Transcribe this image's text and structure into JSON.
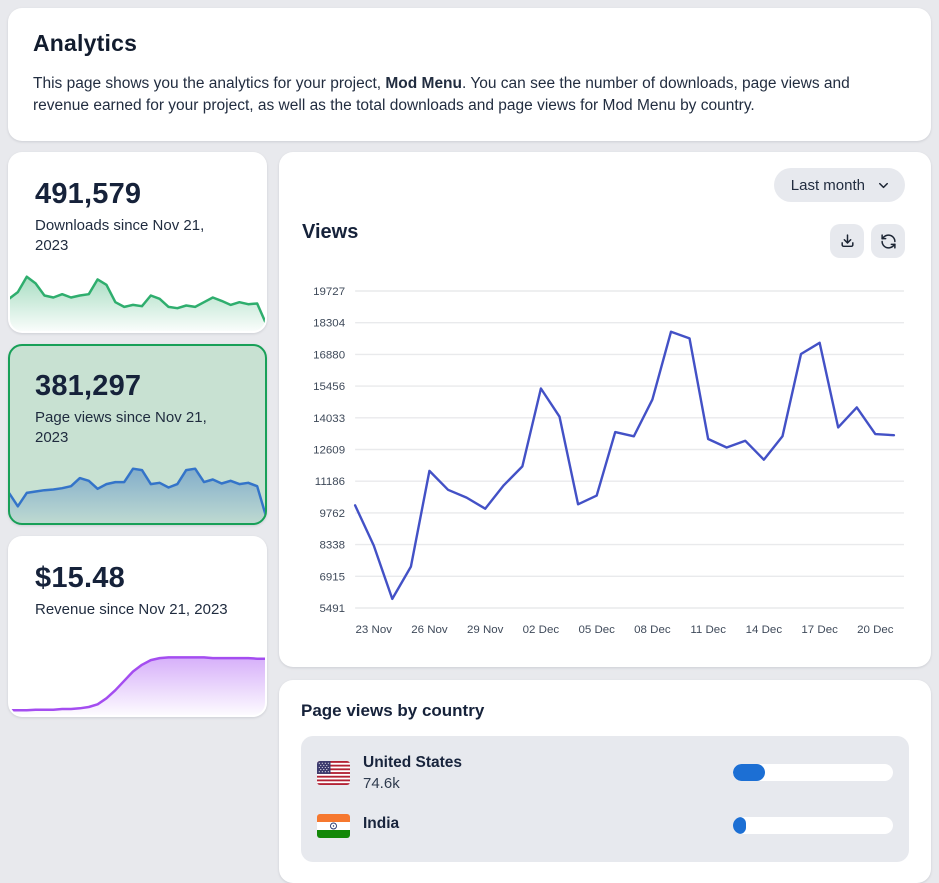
{
  "header": {
    "title": "Analytics",
    "description_prefix": "This page shows you the analytics for your project, ",
    "project_name": "Mod Menu",
    "description_suffix": ". You can see the number of downloads, page views and revenue earned for your project, as well as the total downloads and page views for Mod Menu by country."
  },
  "stat_cards": [
    {
      "value": "491,579",
      "label": "Downloads since Nov 21, 2023",
      "selected": false
    },
    {
      "value": "381,297",
      "label": "Page views since Nov 21, 2023",
      "selected": true
    },
    {
      "value": "$15.48",
      "label": "Revenue since Nov 21, 2023",
      "selected": false
    }
  ],
  "views_panel": {
    "title": "Views",
    "filter_label": "Last month"
  },
  "country_panel": {
    "title": "Page views by country",
    "rows": [
      {
        "country": "United States",
        "value": "74.6k",
        "bar_percent": 20,
        "flag": "us-flag"
      },
      {
        "country": "India",
        "value": "",
        "bar_percent": 8,
        "flag": "india-flag"
      }
    ]
  },
  "chart_data": {
    "type": "line",
    "title": "Views",
    "x": [
      "22 Nov",
      "23 Nov",
      "24 Nov",
      "25 Nov",
      "26 Nov",
      "27 Nov",
      "28 Nov",
      "29 Nov",
      "30 Nov",
      "01 Dec",
      "02 Dec",
      "03 Dec",
      "04 Dec",
      "05 Dec",
      "06 Dec",
      "07 Dec",
      "08 Dec",
      "09 Dec",
      "10 Dec",
      "11 Dec",
      "12 Dec",
      "13 Dec",
      "14 Dec",
      "15 Dec",
      "16 Dec",
      "17 Dec",
      "18 Dec",
      "19 Dec",
      "20 Dec",
      "21 Dec"
    ],
    "values": [
      10100,
      8300,
      5900,
      7350,
      11650,
      10800,
      10450,
      9950,
      11000,
      11850,
      15350,
      14080,
      10150,
      10540,
      13390,
      13200,
      14850,
      17900,
      17600,
      13080,
      12700,
      13000,
      12150,
      13200,
      16900,
      17400,
      13600,
      14500,
      13300,
      13250
    ],
    "y_ticks": [
      19727,
      18304,
      16880,
      15456,
      14033,
      12609,
      11186,
      9762,
      8338,
      6915,
      5491
    ],
    "x_ticks": [
      "23 Nov",
      "26 Nov",
      "29 Nov",
      "02 Dec",
      "05 Dec",
      "08 Dec",
      "11 Dec",
      "14 Dec",
      "17 Dec",
      "20 Dec"
    ],
    "ylim": [
      5491,
      19727
    ],
    "grid": "horizontal",
    "legend": "none",
    "line_color": "#4351c6",
    "sparklines": [
      {
        "name": "downloads",
        "color": "#2fae6e",
        "values": [
          0.45,
          0.55,
          0.78,
          0.68,
          0.5,
          0.47,
          0.52,
          0.47,
          0.5,
          0.52,
          0.74,
          0.66,
          0.4,
          0.33,
          0.36,
          0.34,
          0.5,
          0.45,
          0.33,
          0.31,
          0.35,
          0.33,
          0.4,
          0.47,
          0.42,
          0.36,
          0.4,
          0.37,
          0.38,
          0.08
        ]
      },
      {
        "name": "page_views",
        "color": "#3474c9",
        "values": [
          0.42,
          0.22,
          0.42,
          0.44,
          0.46,
          0.47,
          0.49,
          0.52,
          0.64,
          0.6,
          0.48,
          0.55,
          0.58,
          0.58,
          0.78,
          0.76,
          0.55,
          0.57,
          0.5,
          0.55,
          0.76,
          0.78,
          0.58,
          0.62,
          0.56,
          0.6,
          0.55,
          0.57,
          0.52,
          0.07
        ]
      },
      {
        "name": "revenue",
        "color": "#a44df0",
        "values": [
          0.04,
          0.04,
          0.04,
          0.05,
          0.05,
          0.05,
          0.06,
          0.06,
          0.07,
          0.09,
          0.13,
          0.22,
          0.34,
          0.48,
          0.62,
          0.72,
          0.79,
          0.82,
          0.83,
          0.83,
          0.83,
          0.83,
          0.83,
          0.82,
          0.82,
          0.82,
          0.82,
          0.82,
          0.81,
          0.81
        ]
      }
    ]
  },
  "colors": {
    "page_bg": "#e8e9ed",
    "card_bg": "#ffffff",
    "selected_card_bg": "#c8e1d2",
    "selected_card_border": "#18a058",
    "chart_line": "#4351c6",
    "tick_text": "#3f4a5a",
    "progress_blue": "#1c6fd4",
    "pill_bg": "#e7e9ee"
  }
}
